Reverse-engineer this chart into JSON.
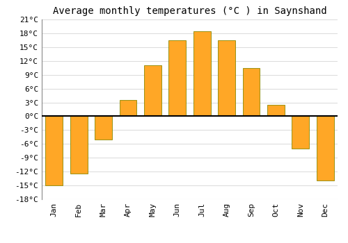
{
  "title": "Average monthly temperatures (°C ) in Saynshand",
  "months": [
    "Jan",
    "Feb",
    "Mar",
    "Apr",
    "May",
    "Jun",
    "Jul",
    "Aug",
    "Sep",
    "Oct",
    "Nov",
    "Dec"
  ],
  "values": [
    -15,
    -12.5,
    -5,
    3.5,
    11,
    16.5,
    18.5,
    16.5,
    10.5,
    2.5,
    -7,
    -14
  ],
  "bar_color": "#FFA726",
  "bar_edge_color": "#888800",
  "ylim": [
    -18,
    21
  ],
  "yticks": [
    -18,
    -15,
    -12,
    -9,
    -6,
    -3,
    0,
    3,
    6,
    9,
    12,
    15,
    18,
    21
  ],
  "ytick_labels": [
    "-18°C",
    "-15°C",
    "-12°C",
    "-9°C",
    "-6°C",
    "-3°C",
    "0°C",
    "3°C",
    "6°C",
    "9°C",
    "12°C",
    "15°C",
    "18°C",
    "21°C"
  ],
  "background_color": "#ffffff",
  "plot_bg_color": "#ffffff",
  "grid_color": "#dddddd",
  "title_fontsize": 10,
  "tick_fontsize": 8,
  "bar_width": 0.7
}
